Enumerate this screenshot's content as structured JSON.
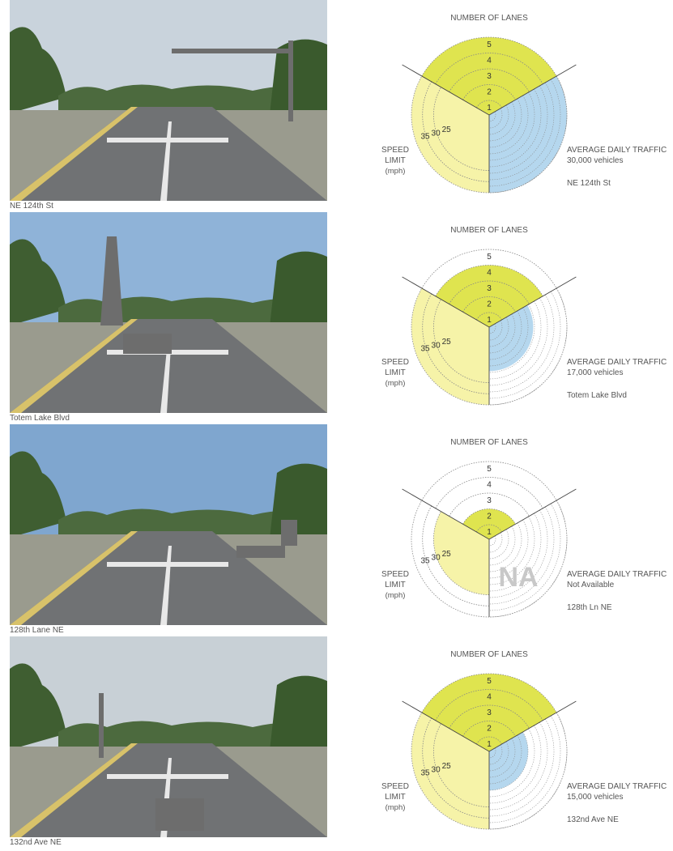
{
  "colors": {
    "lanes_fill": "#dfe44f",
    "speed_fill": "#f6f3a8",
    "traffic_fill": "#b5d7ee",
    "ring_stroke": "#888888",
    "divider": "#444444",
    "na_text": "#c8c8c8"
  },
  "axis_labels": {
    "lanes": "NUMBER OF LANES",
    "speed_line1": "SPEED",
    "speed_line2": "LIMIT",
    "speed_line3": "(mph)",
    "traffic": "AVERAGE DAILY TRAFFIC"
  },
  "lane_ticks": [
    "1",
    "2",
    "3",
    "4",
    "5"
  ],
  "speed_ticks": [
    "25",
    "30",
    "35"
  ],
  "rows": [
    {
      "caption": "NE 124th St",
      "photo_icon": "street-photo-rail-crossing-signal-gantry",
      "traffic_text": "30,000 vehicles",
      "street_label": "NE 124th St",
      "na_text": ""
    },
    {
      "caption": "Totem Lake Blvd",
      "photo_icon": "street-photo-power-towers-suv",
      "traffic_text": "17,000 vehicles",
      "street_label": "Totem Lake Blvd",
      "na_text": ""
    },
    {
      "caption": "128th Lane NE",
      "photo_icon": "street-photo-speed-limit-25-sign",
      "traffic_text": "Not Available",
      "street_label": "128th Ln NE",
      "na_text": "NA"
    },
    {
      "caption": "132nd Ave NE",
      "photo_icon": "street-photo-pickup-truck",
      "traffic_text": "15,000 vehicles",
      "street_label": "132nd Ave NE",
      "na_text": ""
    }
  ],
  "chart_data": [
    {
      "type": "polar-area",
      "street": "NE 124th St",
      "lanes": 5,
      "lanes_max": 5,
      "speed_limit_mph": 35,
      "speed_ticks": [
        25,
        30,
        35
      ],
      "average_daily_traffic": 30000,
      "traffic_max": 30000
    },
    {
      "type": "polar-area",
      "street": "Totem Lake Blvd",
      "lanes": 4,
      "lanes_max": 5,
      "speed_limit_mph": 35,
      "speed_ticks": [
        25,
        30,
        35
      ],
      "average_daily_traffic": 17000,
      "traffic_max": 30000
    },
    {
      "type": "polar-area",
      "street": "128th Ln NE",
      "lanes": 2,
      "lanes_max": 5,
      "speed_limit_mph": 25,
      "speed_ticks": [
        25,
        30,
        35
      ],
      "average_daily_traffic": null,
      "traffic_max": 30000
    },
    {
      "type": "polar-area",
      "street": "132nd Ave NE",
      "lanes": 5,
      "lanes_max": 5,
      "speed_limit_mph": 35,
      "speed_ticks": [
        25,
        30,
        35
      ],
      "average_daily_traffic": 15000,
      "traffic_max": 30000
    }
  ]
}
